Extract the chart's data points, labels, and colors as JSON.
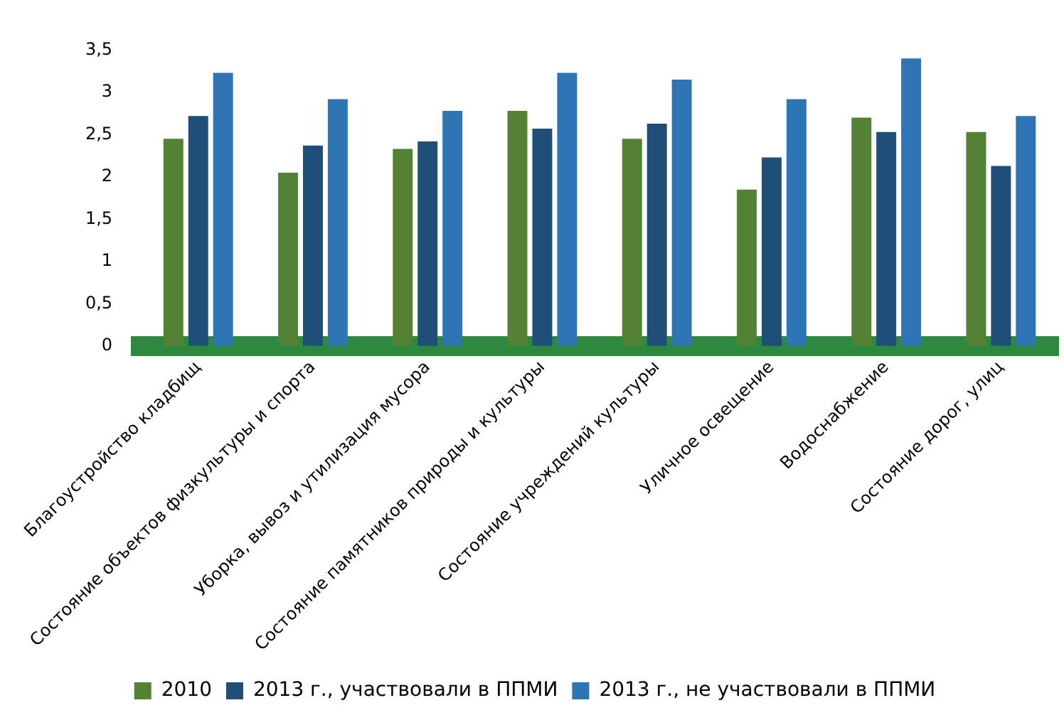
{
  "chart_data": {
    "type": "bar",
    "categories": [
      "Благоустройство кладбищ",
      "Состояние объектов физкультуры и спорта",
      "Уборка, вывоз и утилизация мусора",
      "Состояние памятников природы и культуры",
      "Состояние учреждений культуры",
      "Уличное освещение",
      "Водоснабжение",
      "Состояние дорог, улиц"
    ],
    "series": [
      {
        "name": "2010",
        "color": "#548235",
        "values": [
          2.45,
          2.05,
          2.33,
          2.78,
          2.45,
          1.85,
          2.7,
          2.53
        ]
      },
      {
        "name": "2013 г., участвовали в ППМИ",
        "color": "#1f4e79",
        "values": [
          2.72,
          2.37,
          2.42,
          2.57,
          2.63,
          2.23,
          2.53,
          2.13
        ]
      },
      {
        "name": "2013 г., не участвовали в ППМИ",
        "color": "#2e75b6",
        "values": [
          3.23,
          2.92,
          2.78,
          3.23,
          3.15,
          2.92,
          3.4,
          2.72
        ]
      }
    ],
    "ylim": [
      0,
      3.5
    ],
    "yticks": [
      0,
      {
        "value": 0.5,
        "label": "0,5"
      },
      1,
      {
        "value": 1.5,
        "label": "1,5"
      },
      2,
      {
        "value": 2.5,
        "label": "2,5"
      },
      3,
      {
        "value": 3.5,
        "label": "3,5"
      }
    ],
    "grid": false,
    "legend": "bottom"
  }
}
